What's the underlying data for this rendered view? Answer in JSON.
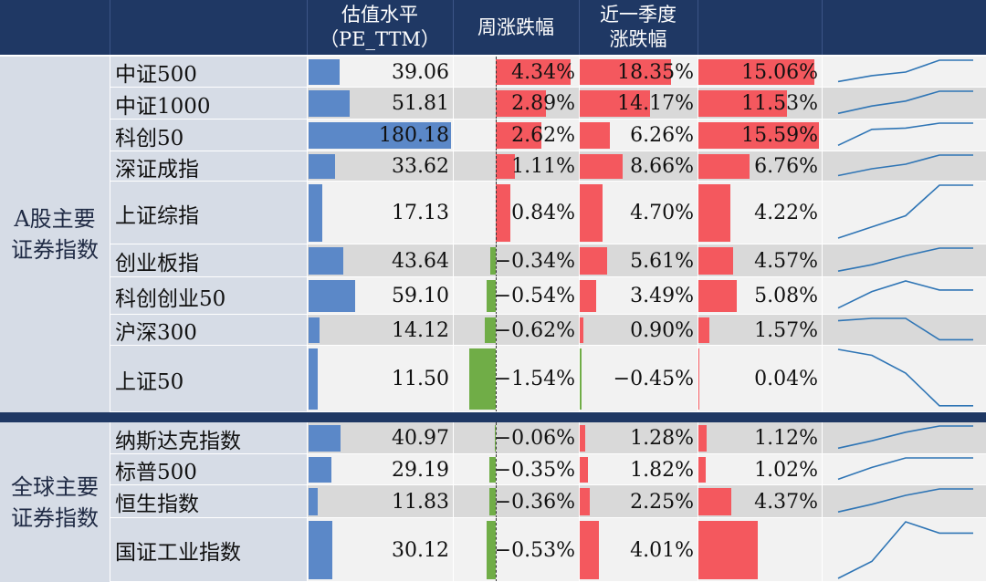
{
  "header": {
    "col_pe": "估值水平\n（PE_TTM）",
    "col_week": "周涨跌幅",
    "col_quarter": "近一季度\n涨跌幅"
  },
  "colors": {
    "header": "#1f3864",
    "pe_bar": "#5b88c8",
    "positive": "#f4585e",
    "negative": "#70ad47",
    "spark": "#2f75b5",
    "row_light": "#f2f2f2",
    "row_dark": "#d9d9d9"
  },
  "groups": [
    {
      "label": "A股主要\n证券指数"
    },
    {
      "label": "全球主要\n证券指数"
    }
  ],
  "chart_data": {
    "type": "table",
    "columns": [
      "估值水平（PE_TTM）",
      "周涨跌幅",
      "近一季度涨跌幅"
    ],
    "rows": [
      {
        "name": "中证500",
        "group": 0,
        "pe": 39.06,
        "week": 4.34,
        "quarter": 18.35,
        "extra": 15.06,
        "spark": [
          0.1,
          0.35,
          0.5,
          1.0,
          1.0
        ]
      },
      {
        "name": "中证1000",
        "group": 0,
        "pe": 51.81,
        "week": 2.89,
        "quarter": 14.17,
        "extra": 11.53,
        "spark": [
          0.1,
          0.4,
          0.6,
          1.0,
          1.0
        ]
      },
      {
        "name": "科创50",
        "group": 0,
        "pe": 180.18,
        "week": 2.62,
        "quarter": 6.26,
        "extra": 15.59,
        "spark": [
          0.1,
          0.75,
          0.8,
          1.0,
          1.0
        ]
      },
      {
        "name": "深证成指",
        "group": 0,
        "pe": 33.62,
        "week": 1.11,
        "quarter": 8.66,
        "extra": 6.76,
        "spark": [
          0.1,
          0.4,
          0.6,
          1.0,
          1.0
        ]
      },
      {
        "name": "上证综指",
        "group": 0,
        "pe": 17.13,
        "week": 0.84,
        "quarter": 4.7,
        "extra": 4.22,
        "spark": [
          0.05,
          0.25,
          0.45,
          1.0,
          1.0
        ]
      },
      {
        "name": "创业板指",
        "group": 0,
        "pe": 43.64,
        "week": -0.34,
        "quarter": 5.61,
        "extra": 4.57,
        "spark": [
          0.1,
          0.35,
          0.7,
          1.0,
          1.0
        ]
      },
      {
        "name": "科创创业50",
        "group": 0,
        "pe": 59.1,
        "week": -0.54,
        "quarter": 3.49,
        "extra": 5.08,
        "spark": [
          0.1,
          0.65,
          1.0,
          0.7,
          0.7
        ]
      },
      {
        "name": "沪深300",
        "group": 0,
        "pe": 14.12,
        "week": -0.62,
        "quarter": 0.9,
        "extra": 1.57,
        "spark": [
          0.9,
          1.0,
          1.0,
          0.1,
          0.1
        ]
      },
      {
        "name": "上证50",
        "group": 0,
        "pe": 11.5,
        "week": -1.54,
        "quarter": -0.45,
        "extra": 0.04,
        "spark": [
          1.0,
          0.9,
          0.6,
          0.05,
          0.05
        ]
      },
      {
        "name": "纳斯达克指数",
        "group": 1,
        "pe": 40.97,
        "week": -0.06,
        "quarter": 1.28,
        "extra": 1.12,
        "spark": [
          0.1,
          0.4,
          0.75,
          1.0,
          1.0
        ]
      },
      {
        "name": "标普500",
        "group": 1,
        "pe": 29.19,
        "week": -0.35,
        "quarter": 1.82,
        "extra": 1.02,
        "spark": [
          0.1,
          0.6,
          1.0,
          1.0,
          1.0
        ]
      },
      {
        "name": "恒生指数",
        "group": 1,
        "pe": 11.83,
        "week": -0.36,
        "quarter": 2.25,
        "extra": 4.37,
        "spark": [
          0.1,
          0.4,
          0.75,
          1.0,
          1.0
        ]
      },
      {
        "name": "国证工业指数",
        "group": 1,
        "pe": 30.12,
        "week": -0.53,
        "quarter": 4.01,
        "extra": null,
        "spark": [
          0.0,
          0.3,
          1.0,
          0.8,
          0.8
        ]
      }
    ]
  }
}
